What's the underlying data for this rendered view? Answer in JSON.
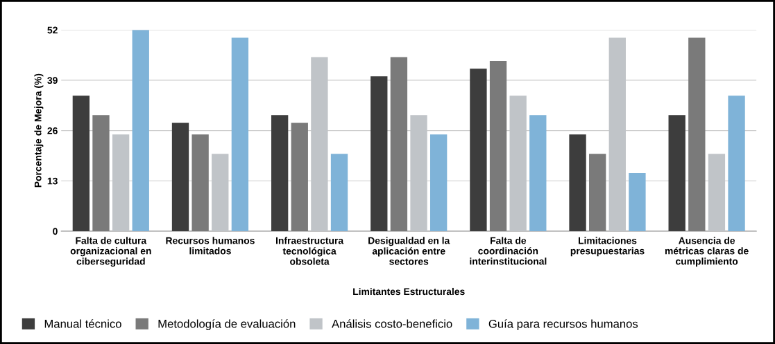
{
  "chart_data": {
    "type": "bar",
    "xlabel": "Limitantes Estructurales",
    "ylabel": "Porcentaje de Mejora (%)",
    "categories": [
      "Falta de cultura\norganizacional en\nciberseguridad",
      "Recursos humanos\nlimitados",
      "Infraestructura\ntecnológica\nobsoleta",
      "Desigualdad en la\naplicación entre\nsectores",
      "Falta de\ncoordinación\ninterinstitucional",
      "Limitaciones\npresupuestarias",
      "Ausencia de\nmétricas claras de\ncumplimiento"
    ],
    "series": [
      {
        "name": "Manual técnico",
        "color": "#3d3d3d",
        "values": [
          35,
          28,
          30,
          40,
          42,
          25,
          30
        ]
      },
      {
        "name": "Metodología de evaluación",
        "color": "#7a7a7a",
        "values": [
          30,
          25,
          28,
          45,
          44,
          20,
          50
        ]
      },
      {
        "name": "Análisis costo-beneficio",
        "color": "#c0c4c8",
        "values": [
          25,
          20,
          45,
          30,
          35,
          50,
          20
        ]
      },
      {
        "name": "Guía para recursos humanos",
        "color": "#7fb3d8",
        "values": [
          52,
          50,
          20,
          25,
          30,
          15,
          35
        ]
      }
    ],
    "ylim": [
      0,
      52
    ],
    "yticks": [
      0,
      13,
      26,
      39,
      52
    ],
    "grid": "y",
    "legend": "bottom"
  }
}
